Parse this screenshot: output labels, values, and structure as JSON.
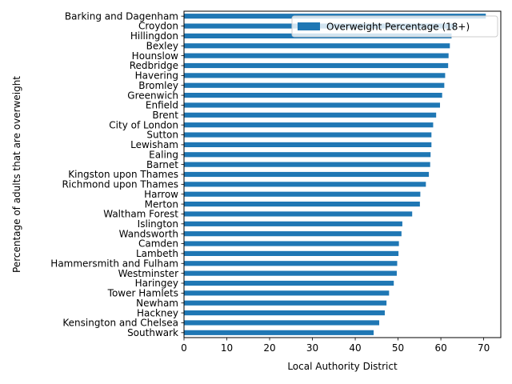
{
  "chart_data": {
    "type": "bar",
    "orientation": "horizontal",
    "xlabel": "Local Authority District",
    "ylabel": "Percentage of adults that are overweight",
    "xlim": [
      0,
      74
    ],
    "xticks": [
      0,
      10,
      20,
      30,
      40,
      50,
      60,
      70
    ],
    "grid": false,
    "legend": {
      "position": "top-right",
      "entries": [
        "Overweight Percentage (18+)"
      ]
    },
    "color": "#1f77b4",
    "series": [
      {
        "name": "Overweight Percentage (18+)",
        "categories": [
          "Barking and Dagenham",
          "Croydon",
          "Hillingdon",
          "Bexley",
          "Hounslow",
          "Redbridge",
          "Havering",
          "Bromley",
          "Greenwich",
          "Enfield",
          "Brent",
          "City of London",
          "Sutton",
          "Lewisham",
          "Ealing",
          "Barnet",
          "Kingston upon Thames",
          "Richmond upon Thames",
          "Harrow",
          "Merton",
          "Waltham Forest",
          "Islington",
          "Wandsworth",
          "Camden",
          "Lambeth",
          "Hammersmith and Fulham",
          "Westminster",
          "Haringey",
          "Tower Hamlets",
          "Newham",
          "Hackney",
          "Kensington and Chelsea",
          "Southwark"
        ],
        "values": [
          70.5,
          63.5,
          62.5,
          62.1,
          61.8,
          61.7,
          61.0,
          60.8,
          60.3,
          59.8,
          58.9,
          58.2,
          57.8,
          57.8,
          57.6,
          57.5,
          57.2,
          56.5,
          55.2,
          55.1,
          53.3,
          51.0,
          50.8,
          50.2,
          50.1,
          49.8,
          49.7,
          49.0,
          47.9,
          47.3,
          46.9,
          45.6,
          44.3
        ]
      }
    ]
  }
}
